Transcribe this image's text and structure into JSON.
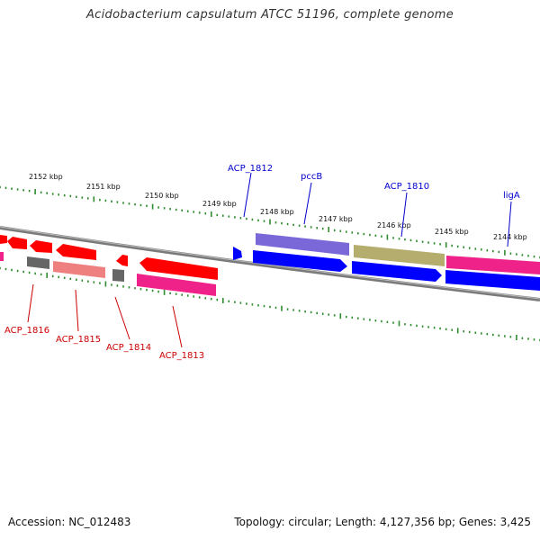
{
  "title": "Acidobacterium capsulatum ATCC 51196, complete genome",
  "footer": {
    "accession": "Accession: NC_012483",
    "summary": "Topology: circular; Length: 4,127,356 bp; Genes: 3,425"
  },
  "kbp_labels": [
    "2152 kbp",
    "2151 kbp",
    "2150 kbp",
    "2149 kbp",
    "2148 kbp",
    "2147 kbp",
    "2146 kbp",
    "2145 kbp",
    "2144 kbp"
  ],
  "gene_labels": {
    "upper": [
      "ACP_1812",
      "pccB",
      "ACP_1810",
      "ligA"
    ],
    "lower": [
      "ACP_1816",
      "ACP_1815",
      "ACP_1814",
      "ACP_1813"
    ]
  },
  "colors": {
    "tick": "#2e8b2e",
    "backbone": "#7a7a7a",
    "label_upper": "#0000cc",
    "label_lower": "#cc0000",
    "gene_blue": "#0000ff",
    "gene_purple": "#7b68d8",
    "gene_olive": "#b5ad6e",
    "gene_magenta": "#ee2288",
    "gene_red": "#ff0000",
    "gene_pink": "#ee8080",
    "gene_gray": "#666666"
  }
}
